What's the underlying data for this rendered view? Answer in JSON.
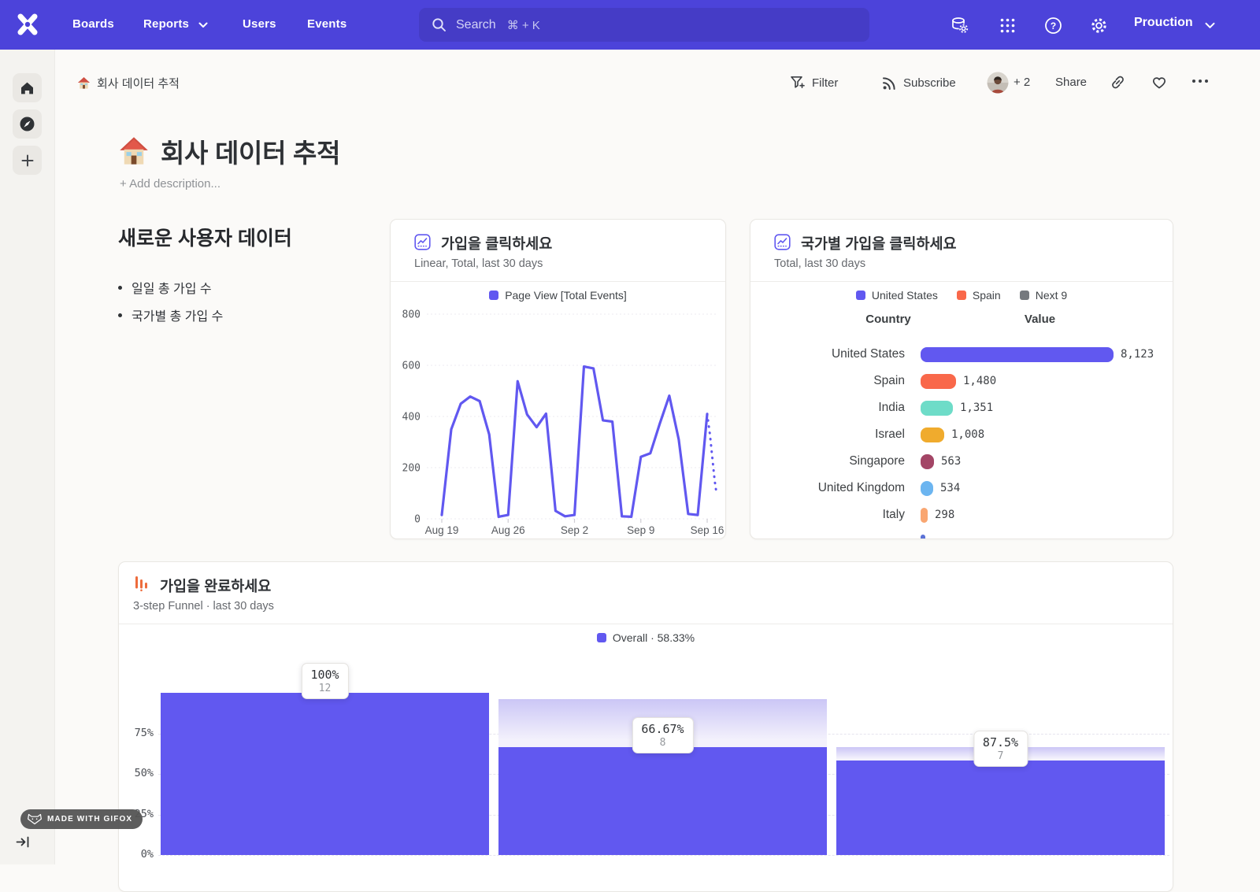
{
  "navbar": {
    "items": [
      {
        "label": "Boards"
      },
      {
        "label": "Reports"
      },
      {
        "label": "Users"
      },
      {
        "label": "Events"
      }
    ],
    "search_label": "Search",
    "search_shortcut": "⌘ + K",
    "project_name": "Prouction"
  },
  "toolbar": {
    "breadcrumb_title": "회사 데이터 추적",
    "filter_label": "Filter",
    "subscribe_label": "Subscribe",
    "collaborators_more": "+ 2",
    "share_label": "Share"
  },
  "page": {
    "emoji": "🏠",
    "title": "회사 데이터 추적",
    "description_placeholder": "+ Add description..."
  },
  "text_card": {
    "title": "새로운 사용자 데이터",
    "bullets": [
      "일일 총 가입 수",
      "국가별 총 가입 수"
    ]
  },
  "badge": {
    "label": "MADE WITH GIFOX"
  },
  "chart_data": [
    {
      "type": "line",
      "title": "가입을 클릭하세요",
      "subtitle": "Linear, Total, last 30 days",
      "legend": [
        {
          "label": "Page View [Total Events]",
          "color": "#6158f0"
        }
      ],
      "x_tick_labels": [
        "Aug 19",
        "Aug 26",
        "Sep 2",
        "Sep 9",
        "Sep 16"
      ],
      "x_tick_indices": [
        0,
        7,
        14,
        21,
        28
      ],
      "y_ticks": [
        0,
        200,
        400,
        600,
        800
      ],
      "ylim": [
        0,
        800
      ],
      "series": [
        {
          "name": "Page View [Total Events]",
          "color": "#6158f0",
          "values": [
            15,
            350,
            450,
            478,
            460,
            330,
            8,
            15,
            538,
            408,
            358,
            411,
            31,
            10,
            15,
            595,
            588,
            385,
            380,
            10,
            8,
            242,
            256,
            372,
            481,
            310,
            19,
            15,
            410
          ]
        }
      ],
      "projection": {
        "note": "dotted incomplete-day segment",
        "values": [
          410,
          330,
          240,
          150,
          97
        ]
      }
    },
    {
      "type": "bar",
      "title": "국가별 가입을 클릭하세요",
      "subtitle": "Total, last 30 days",
      "legend": [
        {
          "label": "United States",
          "color": "#6158f0"
        },
        {
          "label": "Spain",
          "color": "#f9684a"
        },
        {
          "label": "Next 9",
          "color": "#75797e"
        }
      ],
      "columns": [
        "Country",
        "Value"
      ],
      "max_value": 8123,
      "rows": [
        {
          "country": "United States",
          "value": 8123,
          "display": "8,123",
          "color": "#6158f0"
        },
        {
          "country": "Spain",
          "value": 1480,
          "display": "1,480",
          "color": "#f9684a"
        },
        {
          "country": "India",
          "value": 1351,
          "display": "1,351",
          "color": "#6edcc8"
        },
        {
          "country": "Israel",
          "value": 1008,
          "display": "1,008",
          "color": "#f0ab2d"
        },
        {
          "country": "Singapore",
          "value": 563,
          "display": "563",
          "color": "#a34566"
        },
        {
          "country": "United Kingdom",
          "value": 534,
          "display": "534",
          "color": "#6cb5f0"
        },
        {
          "country": "Italy",
          "value": 298,
          "display": "298",
          "color": "#f9a671"
        },
        {
          "country": "",
          "value": 40,
          "display": "",
          "color": "#5b72d6",
          "partial": true
        }
      ]
    },
    {
      "type": "funnel",
      "title": "가입을 완료하세요",
      "subtitle": "3-step Funnel · last 30 days",
      "legend": [
        {
          "label": "Overall · 58.33%",
          "color": "#6158f0"
        }
      ],
      "y_tick_labels": [
        "0%",
        "25%",
        "50%",
        "75%"
      ],
      "steps": [
        {
          "step_conversion": "100%",
          "count": 12,
          "overall_pct": 100,
          "prev_overall_pct": 100
        },
        {
          "step_conversion": "66.67%",
          "count": 8,
          "overall_pct": 66.67,
          "prev_overall_pct": 100
        },
        {
          "step_conversion": "87.5%",
          "count": 7,
          "overall_pct": 58.33,
          "prev_overall_pct": 66.67
        }
      ]
    }
  ]
}
